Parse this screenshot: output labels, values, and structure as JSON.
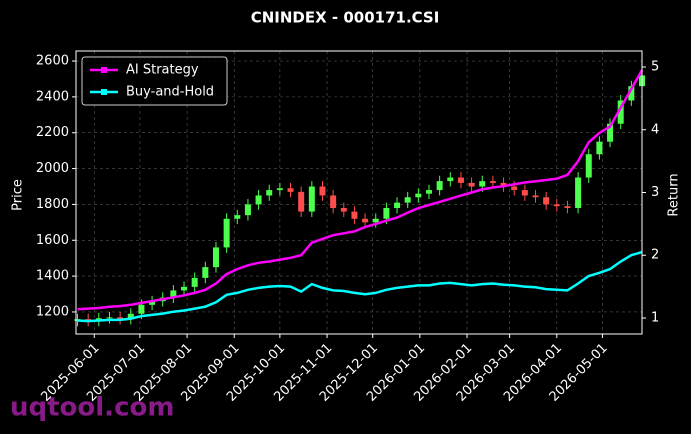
{
  "chart_data": {
    "type": "candlestick",
    "title": "CNINDEX - 000171.CSI",
    "ylabel": "Price",
    "y2label": "Return",
    "watermark": "uqtool.com",
    "x": [
      "2025-05-21",
      "2025-05-28",
      "2025-06-04",
      "2025-06-11",
      "2025-06-18",
      "2025-06-25",
      "2025-07-02",
      "2025-07-09",
      "2025-07-16",
      "2025-07-23",
      "2025-07-30",
      "2025-08-06",
      "2025-08-13",
      "2025-08-20",
      "2025-08-27",
      "2025-09-03",
      "2025-09-10",
      "2025-09-17",
      "2025-09-24",
      "2025-10-01",
      "2025-10-08",
      "2025-10-15",
      "2025-10-22",
      "2025-10-29",
      "2025-11-05",
      "2025-11-12",
      "2025-11-19",
      "2025-11-26",
      "2025-12-03",
      "2025-12-10",
      "2025-12-17",
      "2025-12-24",
      "2025-12-31",
      "2026-01-07",
      "2026-01-14",
      "2026-01-21",
      "2026-01-28",
      "2026-02-04",
      "2026-02-11",
      "2026-02-18",
      "2026-02-25",
      "2026-03-04",
      "2026-03-11",
      "2026-03-18",
      "2026-03-25",
      "2026-04-01",
      "2026-04-08",
      "2026-04-15",
      "2026-04-22",
      "2026-04-29",
      "2026-05-06",
      "2026-05-13",
      "2026-05-20",
      "2026-05-27"
    ],
    "open": [
      1150,
      1160,
      1150,
      1165,
      1170,
      1160,
      1190,
      1240,
      1260,
      1280,
      1320,
      1340,
      1390,
      1450,
      1560,
      1720,
      1740,
      1800,
      1850,
      1880,
      1890,
      1870,
      1760,
      1900,
      1850,
      1780,
      1760,
      1720,
      1700,
      1720,
      1780,
      1810,
      1840,
      1860,
      1880,
      1930,
      1950,
      1920,
      1900,
      1930,
      1920,
      1900,
      1880,
      1850,
      1840,
      1800,
      1790,
      1780,
      1950,
      2080,
      2150,
      2250,
      2380,
      2460
    ],
    "high": [
      1190,
      1190,
      1195,
      1200,
      1200,
      1220,
      1270,
      1290,
      1310,
      1350,
      1370,
      1420,
      1480,
      1590,
      1750,
      1770,
      1830,
      1880,
      1910,
      1920,
      1920,
      1900,
      1930,
      1930,
      1880,
      1810,
      1790,
      1750,
      1750,
      1810,
      1840,
      1870,
      1890,
      1910,
      1960,
      1980,
      1980,
      1950,
      1960,
      1960,
      1950,
      1930,
      1910,
      1880,
      1870,
      1830,
      1820,
      1980,
      2110,
      2180,
      2280,
      2410,
      2490,
      2550
    ],
    "low": [
      1120,
      1120,
      1120,
      1135,
      1130,
      1130,
      1160,
      1210,
      1230,
      1250,
      1290,
      1310,
      1360,
      1420,
      1530,
      1690,
      1710,
      1770,
      1820,
      1850,
      1840,
      1730,
      1730,
      1820,
      1750,
      1730,
      1690,
      1670,
      1670,
      1690,
      1750,
      1780,
      1810,
      1830,
      1850,
      1900,
      1890,
      1870,
      1870,
      1890,
      1870,
      1850,
      1820,
      1810,
      1770,
      1760,
      1750,
      1750,
      1920,
      2050,
      2120,
      2220,
      2350,
      2430
    ],
    "close": [
      1160,
      1150,
      1165,
      1170,
      1160,
      1190,
      1240,
      1260,
      1280,
      1320,
      1340,
      1390,
      1450,
      1560,
      1720,
      1740,
      1800,
      1850,
      1880,
      1890,
      1870,
      1760,
      1900,
      1850,
      1780,
      1760,
      1720,
      1700,
      1720,
      1780,
      1810,
      1840,
      1860,
      1880,
      1930,
      1950,
      1920,
      1900,
      1930,
      1920,
      1900,
      1880,
      1850,
      1840,
      1800,
      1790,
      1780,
      1950,
      2080,
      2150,
      2250,
      2380,
      2460,
      2520
    ],
    "up_color": "#4cff4c",
    "down_color": "#ff4c4c",
    "series": [
      {
        "name": "AI Strategy",
        "color": "#ff00ff",
        "axis": "y2",
        "values": [
          1.14,
          1.15,
          1.16,
          1.18,
          1.19,
          1.21,
          1.24,
          1.27,
          1.3,
          1.33,
          1.36,
          1.4,
          1.45,
          1.55,
          1.7,
          1.78,
          1.84,
          1.88,
          1.9,
          1.93,
          1.96,
          2.0,
          2.2,
          2.26,
          2.32,
          2.35,
          2.38,
          2.45,
          2.5,
          2.55,
          2.6,
          2.68,
          2.75,
          2.8,
          2.85,
          2.9,
          2.95,
          3.0,
          3.05,
          3.08,
          3.1,
          3.13,
          3.16,
          3.18,
          3.2,
          3.22,
          3.28,
          3.5,
          3.8,
          3.95,
          4.05,
          4.35,
          4.65,
          4.95
        ]
      },
      {
        "name": "Buy-and-Hold",
        "color": "#00ffff",
        "axis": "y2",
        "values": [
          0.96,
          0.95,
          0.96,
          0.97,
          0.97,
          0.99,
          1.03,
          1.05,
          1.07,
          1.1,
          1.12,
          1.15,
          1.18,
          1.25,
          1.37,
          1.4,
          1.45,
          1.48,
          1.5,
          1.51,
          1.5,
          1.42,
          1.54,
          1.48,
          1.44,
          1.43,
          1.4,
          1.38,
          1.4,
          1.45,
          1.48,
          1.5,
          1.52,
          1.52,
          1.55,
          1.56,
          1.54,
          1.52,
          1.54,
          1.55,
          1.53,
          1.52,
          1.5,
          1.49,
          1.46,
          1.45,
          1.44,
          1.55,
          1.67,
          1.72,
          1.78,
          1.9,
          2.0,
          2.05
        ]
      }
    ],
    "xlim": [
      "2025-05-20",
      "2026-05-27"
    ],
    "xticks": [
      "2025-06-01",
      "2025-07-01",
      "2025-08-01",
      "2025-09-01",
      "2025-10-01",
      "2025-11-01",
      "2025-12-01",
      "2026-01-01",
      "2026-02-01",
      "2026-03-01",
      "2026-04-01",
      "2026-05-01"
    ],
    "ylim": [
      1077,
      2656
    ],
    "yticks": [
      1200,
      1400,
      1600,
      1800,
      2000,
      2200,
      2400,
      2600
    ],
    "y2lim": [
      0.745,
      5.255
    ],
    "y2ticks": [
      1,
      2,
      3,
      4,
      5
    ],
    "grid": true,
    "legend": "upper left"
  }
}
